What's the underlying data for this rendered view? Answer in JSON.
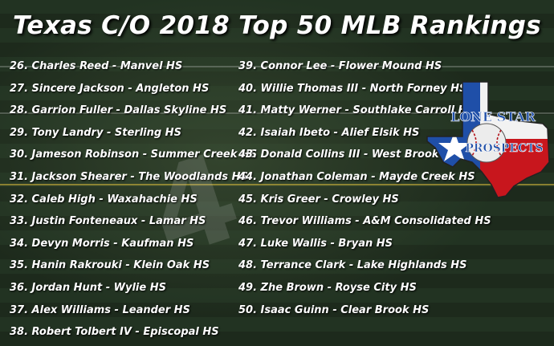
{
  "title": "Texas C/O 2018 Top 50 MLB Rankings",
  "logo": {
    "line1": "LONE STAR",
    "line2": "PROSPECTS",
    "icon": "texas-flag-map-baseball-icon"
  },
  "rankings_left": [
    "26. Charles Reed - Manvel HS",
    "27. Sincere Jackson - Angleton HS",
    "28. Garrion Fuller - Dallas Skyline HS",
    "29. Tony Landry - Sterling HS",
    "30. Jameson Robinson - Summer Creek HS",
    "31. Jackson Shearer - The Woodlands HS",
    "32. Caleb High - Waxahachie HS",
    "33. Justin Fonteneaux - Lamar HS",
    "34. Devyn Morris - Kaufman HS",
    "35. Hanin Rakrouki - Klein Oak HS",
    "36. Jordan Hunt - Wylie HS",
    "37. Alex Williams - Leander HS",
    "38. Robert Tolbert IV - Episcopal HS"
  ],
  "rankings_right": [
    "39. Connor Lee - Flower Mound HS",
    "40. Willie Thomas III - North Forney HS",
    "41. Matty Werner - Southlake Carroll HS",
    "42. Isaiah Ibeto - Alief Elsik HS",
    "43. Donald Collins III - West Brook HS",
    "44. Jonathan Coleman - Mayde Creek HS",
    "45. Kris Greer - Crowley HS",
    "46. Trevor Williams - A&M Consolidated HS",
    "47. Luke Wallis - Bryan HS",
    "48. Terrance Clark - Lake Highlands HS",
    "49. Zhe Brown - Royse City HS",
    "50. Isaac Guinn - Clear Brook HS"
  ]
}
